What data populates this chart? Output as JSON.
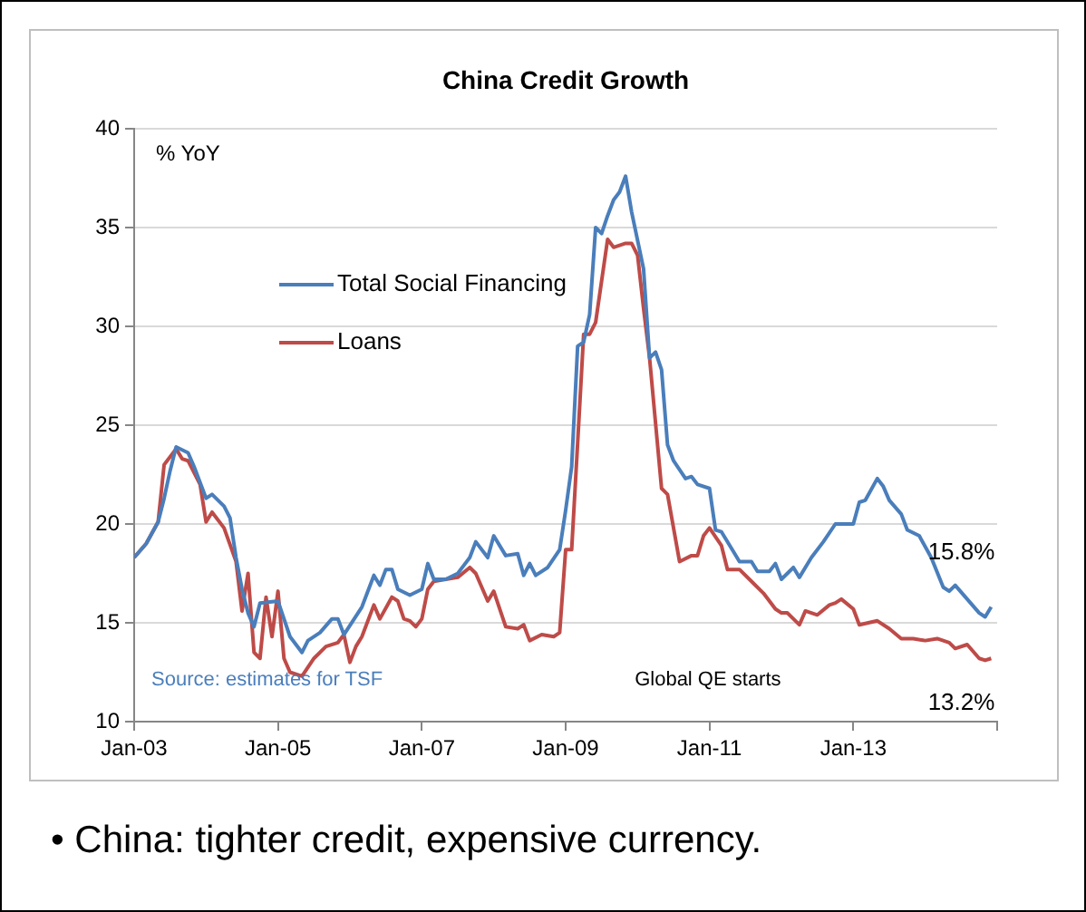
{
  "chart_data": {
    "type": "line",
    "title": "China Credit Growth",
    "ylabel": "% YoY",
    "xlim": [
      "2003-01",
      "2015-01"
    ],
    "xticks": [
      {
        "value": "2003-01",
        "label": "Jan-03"
      },
      {
        "value": "2005-01",
        "label": "Jan-05"
      },
      {
        "value": "2007-01",
        "label": "Jan-07"
      },
      {
        "value": "2009-01",
        "label": "Jan-09"
      },
      {
        "value": "2011-01",
        "label": "Jan-11"
      },
      {
        "value": "2013-01",
        "label": "Jan-13"
      },
      {
        "value": "2015-01",
        "label": null
      }
    ],
    "ylim": [
      10,
      40
    ],
    "yticks": [
      10,
      15,
      20,
      25,
      30,
      35,
      40
    ],
    "grid": "y",
    "legend": "top left",
    "marker": "none",
    "line_style": "solid",
    "series": [
      {
        "name": "Total Social Financing",
        "color": "#4a7ebb",
        "x": [
          "2003-01",
          "2003-03",
          "2003-05",
          "2003-06",
          "2003-07",
          "2003-08",
          "2003-10",
          "2003-11",
          "2004-01",
          "2004-02",
          "2004-04",
          "2004-05",
          "2004-06",
          "2004-07",
          "2004-08",
          "2004-09",
          "2004-10",
          "2005-01",
          "2005-02",
          "2005-03",
          "2005-05",
          "2005-06",
          "2005-08",
          "2005-10",
          "2005-11",
          "2005-12",
          "2006-03",
          "2006-05",
          "2006-06",
          "2006-07",
          "2006-08",
          "2006-09",
          "2006-11",
          "2007-01",
          "2007-02",
          "2007-03",
          "2007-05",
          "2007-07",
          "2007-09",
          "2007-10",
          "2007-12",
          "2008-01",
          "2008-03",
          "2008-05",
          "2008-06",
          "2008-07",
          "2008-08",
          "2008-10",
          "2008-12",
          "2009-01",
          "2009-02",
          "2009-03",
          "2009-04",
          "2009-05",
          "2009-06",
          "2009-07",
          "2009-08",
          "2009-09",
          "2009-10",
          "2009-11",
          "2009-12",
          "2010-02",
          "2010-03",
          "2010-04",
          "2010-05",
          "2010-06",
          "2010-07",
          "2010-09",
          "2010-10",
          "2010-11",
          "2011-01",
          "2011-02",
          "2011-03",
          "2011-05",
          "2011-06",
          "2011-08",
          "2011-09",
          "2011-11",
          "2011-12",
          "2012-01",
          "2012-03",
          "2012-04",
          "2012-06",
          "2012-08",
          "2012-10",
          "2013-01",
          "2013-02",
          "2013-03",
          "2013-05",
          "2013-06",
          "2013-07",
          "2013-09",
          "2013-10",
          "2013-12",
          "2014-02",
          "2014-04",
          "2014-05",
          "2014-06",
          "2014-08",
          "2014-10",
          "2014-11",
          "2014-12"
        ],
        "values": [
          18.3,
          19.0,
          20.1,
          21.3,
          22.7,
          23.9,
          23.6,
          22.9,
          21.3,
          21.5,
          20.9,
          20.3,
          18.3,
          16.7,
          15.5,
          14.8,
          16.0,
          16.1,
          15.2,
          14.3,
          13.5,
          14.1,
          14.5,
          15.2,
          15.2,
          14.4,
          15.8,
          17.4,
          16.9,
          17.7,
          17.7,
          16.7,
          16.4,
          16.7,
          18.0,
          17.2,
          17.2,
          17.5,
          18.3,
          19.1,
          18.3,
          19.4,
          18.4,
          18.5,
          17.4,
          18.0,
          17.4,
          17.8,
          18.7,
          20.7,
          22.9,
          29.0,
          29.2,
          30.6,
          35.0,
          34.7,
          35.6,
          36.4,
          36.8,
          37.6,
          35.8,
          32.9,
          28.4,
          28.7,
          27.8,
          24.0,
          23.2,
          22.3,
          22.4,
          22.0,
          21.8,
          19.7,
          19.6,
          18.6,
          18.1,
          18.1,
          17.6,
          17.6,
          18.0,
          17.2,
          17.8,
          17.3,
          18.3,
          19.1,
          20.0,
          20.0,
          21.1,
          21.2,
          22.3,
          21.9,
          21.2,
          20.5,
          19.7,
          19.4,
          18.3,
          16.8,
          16.6,
          16.9,
          16.2,
          15.5,
          15.3,
          15.8
        ]
      },
      {
        "name": "Loans",
        "color": "#be4b48",
        "x": [
          "2003-01",
          "2003-03",
          "2003-05",
          "2003-06",
          "2003-08",
          "2003-09",
          "2003-10",
          "2003-12",
          "2004-01",
          "2004-02",
          "2004-04",
          "2004-06",
          "2004-07",
          "2004-08",
          "2004-09",
          "2004-10",
          "2004-11",
          "2004-12",
          "2005-01",
          "2005-02",
          "2005-03",
          "2005-05",
          "2005-07",
          "2005-09",
          "2005-11",
          "2005-12",
          "2006-01",
          "2006-02",
          "2006-03",
          "2006-05",
          "2006-06",
          "2006-08",
          "2006-09",
          "2006-10",
          "2006-11",
          "2006-12",
          "2007-01",
          "2007-02",
          "2007-03",
          "2007-05",
          "2007-07",
          "2007-09",
          "2007-10",
          "2007-12",
          "2008-01",
          "2008-03",
          "2008-05",
          "2008-06",
          "2008-07",
          "2008-09",
          "2008-11",
          "2008-12",
          "2009-01",
          "2009-02",
          "2009-03",
          "2009-04",
          "2009-05",
          "2009-06",
          "2009-08",
          "2009-09",
          "2009-11",
          "2009-12",
          "2010-01",
          "2010-02",
          "2010-03",
          "2010-05",
          "2010-06",
          "2010-08",
          "2010-10",
          "2010-11",
          "2010-12",
          "2011-01",
          "2011-03",
          "2011-04",
          "2011-06",
          "2011-08",
          "2011-10",
          "2011-12",
          "2012-01",
          "2012-02",
          "2012-04",
          "2012-05",
          "2012-07",
          "2012-09",
          "2012-10",
          "2012-11",
          "2013-01",
          "2013-02",
          "2013-05",
          "2013-07",
          "2013-09",
          "2013-11",
          "2014-01",
          "2014-03",
          "2014-05",
          "2014-06",
          "2014-08",
          "2014-10",
          "2014-11",
          "2014-12"
        ],
        "values": [
          18.3,
          19.0,
          20.1,
          23.0,
          23.8,
          23.3,
          23.2,
          22.0,
          20.1,
          20.6,
          19.8,
          18.1,
          15.6,
          17.5,
          13.5,
          13.2,
          16.3,
          14.3,
          16.6,
          13.2,
          12.5,
          12.3,
          13.2,
          13.8,
          14.0,
          14.4,
          13.0,
          13.8,
          14.3,
          15.9,
          15.2,
          16.3,
          16.1,
          15.2,
          15.1,
          14.8,
          15.2,
          16.7,
          17.1,
          17.2,
          17.3,
          17.8,
          17.5,
          16.1,
          16.6,
          14.8,
          14.7,
          14.9,
          14.1,
          14.4,
          14.3,
          14.5,
          18.7,
          18.7,
          24.1,
          29.6,
          29.6,
          30.2,
          34.4,
          34.0,
          34.2,
          34.2,
          33.6,
          30.9,
          28.4,
          21.8,
          21.5,
          18.1,
          18.4,
          18.4,
          19.4,
          19.8,
          18.9,
          17.7,
          17.7,
          17.1,
          16.5,
          15.7,
          15.5,
          15.5,
          14.9,
          15.6,
          15.4,
          15.9,
          16.0,
          16.2,
          15.7,
          14.9,
          15.1,
          14.7,
          14.2,
          14.2,
          14.1,
          14.2,
          14.0,
          13.7,
          13.9,
          13.2,
          13.1,
          13.2
        ]
      }
    ],
    "annotations": [
      {
        "text": "15.8%",
        "x": "2014-12",
        "y": 15.8
      },
      {
        "text": "13.2%",
        "x": "2014-12",
        "y": 13.2
      },
      "Global QE starts",
      "Source: estimates for TSF",
      "•  China: tighter credit, expensive currency."
    ]
  }
}
